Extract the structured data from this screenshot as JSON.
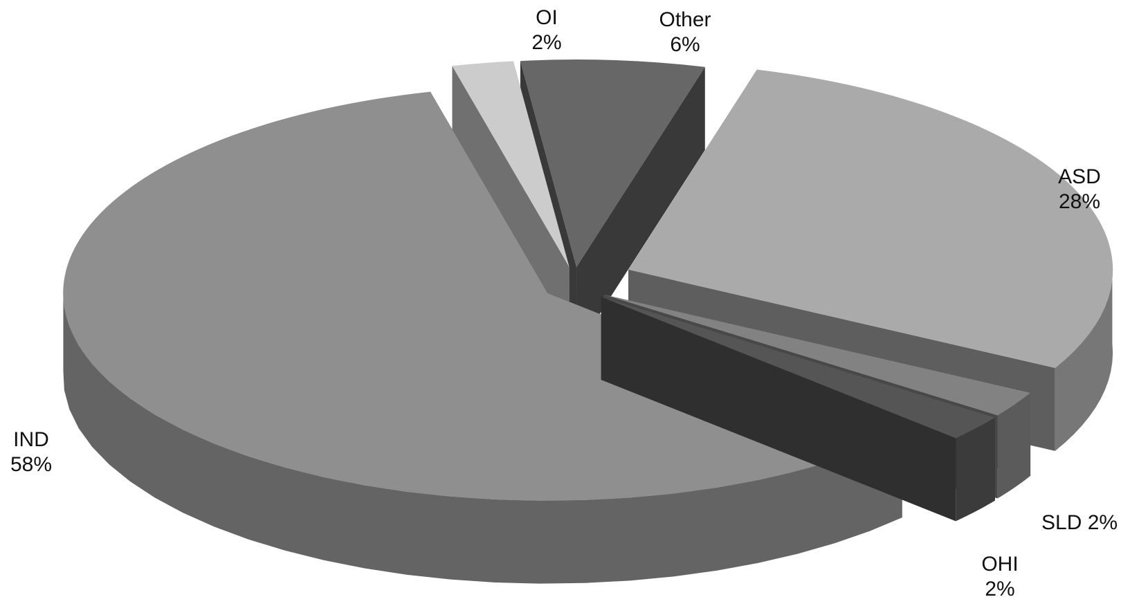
{
  "chart_data": {
    "type": "pie",
    "style": "3d-exploded",
    "slices": [
      {
        "name": "OI",
        "value": 2,
        "value_label": "2%",
        "color": "#cccccc"
      },
      {
        "name": "Other",
        "value": 6,
        "value_label": "6%",
        "color": "#676767"
      },
      {
        "name": "ASD",
        "value": 28,
        "value_label": "28%",
        "color": "#aaaaaa"
      },
      {
        "name": "SLD",
        "value": 2,
        "value_label": "2%",
        "color": "#828282"
      },
      {
        "name": "OHI",
        "value": 2,
        "value_label": "2%",
        "color": "#555555"
      },
      {
        "name": "IND",
        "value": 58,
        "value_label": "58%",
        "color": "#8f8f8f"
      }
    ]
  }
}
